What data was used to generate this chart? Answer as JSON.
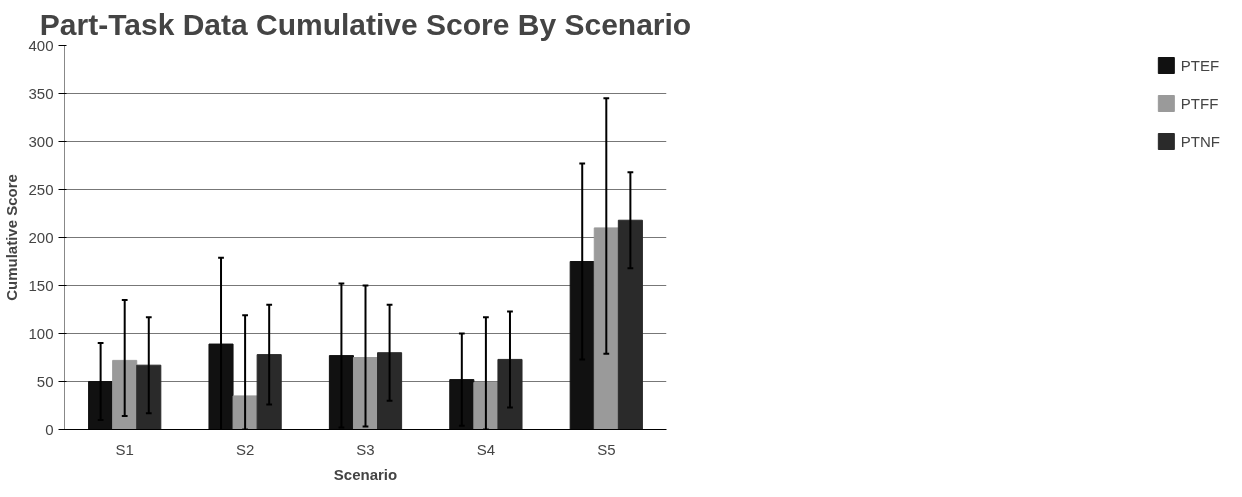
{
  "chart_data": {
    "type": "bar",
    "title": "Part-Task Data Cumulative Score By Scenario",
    "xlabel": "Scenario",
    "ylabel": "Cumulative Score",
    "categories": [
      "S1",
      "S2",
      "S3",
      "S4",
      "S5"
    ],
    "series": [
      {
        "name": "PTEF",
        "color": "#111111",
        "values": [
          50,
          89,
          77,
          52,
          175
        ],
        "errors": [
          40,
          90,
          75,
          48,
          102
        ]
      },
      {
        "name": "PTFF",
        "color": "#9a9a9a",
        "values": [
          72,
          35,
          75,
          49,
          210
        ],
        "errors": [
          [
            14,
            135
          ],
          [
            0,
            119
          ],
          [
            3,
            150
          ],
          [
            0,
            117
          ],
          [
            79,
            345
          ]
        ]
      },
      {
        "name": "PTNF",
        "color": "#2a2a2a",
        "values": [
          67,
          78,
          80,
          73,
          218
        ],
        "errors": [
          50,
          52,
          50,
          50,
          50
        ]
      }
    ],
    "ylim": [
      0,
      400
    ],
    "yticks": [
      0,
      50,
      100,
      150,
      200,
      250,
      300,
      350,
      400
    ],
    "grid": "y",
    "legend": "right"
  }
}
